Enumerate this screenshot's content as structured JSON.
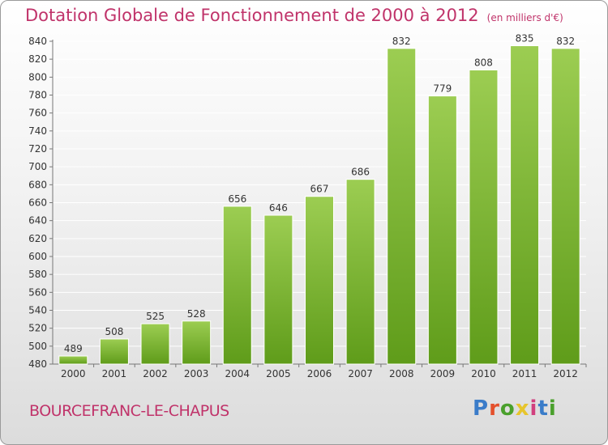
{
  "header": {
    "title": "Dotation Globale de Fonctionnement de 2000 à 2012",
    "subtitle": "(en milliers d'€)"
  },
  "footer": {
    "commune": "BOURCEFRANC-LE-CHAPUS",
    "brand": "Proxiti",
    "brand_colors": [
      "#3a7cc9",
      "#e4502c",
      "#4aa02c",
      "#e7c52c",
      "#d1407e",
      "#3a7cc9",
      "#4aa02c"
    ]
  },
  "colors": {
    "bar_top": "#9ccd52",
    "bar_bottom": "#5f9c1a",
    "axis": "#777777",
    "grid": "#ffffff",
    "title": "#c0336a"
  },
  "chart_data": {
    "type": "bar",
    "title": "Dotation Globale de Fonctionnement de 2000 à 2012",
    "subtitle": "(en milliers d'€)",
    "xlabel": "",
    "ylabel": "",
    "categories": [
      "2000",
      "2001",
      "2002",
      "2003",
      "2004",
      "2005",
      "2006",
      "2007",
      "2008",
      "2009",
      "2010",
      "2011",
      "2012"
    ],
    "values": [
      489,
      508,
      525,
      528,
      656,
      646,
      667,
      686,
      832,
      779,
      808,
      835,
      832
    ],
    "ylim": [
      480,
      840
    ],
    "yticks": [
      480,
      500,
      520,
      540,
      560,
      580,
      600,
      620,
      640,
      660,
      680,
      700,
      720,
      740,
      760,
      780,
      800,
      820,
      840
    ],
    "grid": true,
    "data_labels": true
  }
}
